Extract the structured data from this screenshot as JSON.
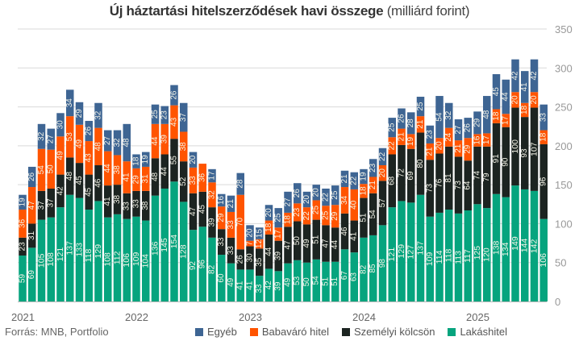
{
  "chart_data": {
    "type": "bar",
    "stacked": true,
    "title": "Új háztartási hitelszerződések havi összege",
    "subtitle": "(milliárd forint)",
    "source": "Forrás: MNB, Portfolio",
    "ylim": [
      0,
      350
    ],
    "yticks": [
      0,
      50,
      100,
      150,
      200,
      250,
      300,
      350
    ],
    "grid": true,
    "legend_position": "bottom",
    "year_labels": [
      "2021",
      "2022",
      "2023",
      "2024",
      "2025"
    ],
    "x": [
      "2021-01",
      "2021-02",
      "2021-03",
      "2021-04",
      "2021-05",
      "2021-06",
      "2021-07",
      "2021-08",
      "2021-09",
      "2021-10",
      "2021-11",
      "2021-12",
      "2022-01",
      "2022-02",
      "2022-03",
      "2022-04",
      "2022-05",
      "2022-06",
      "2022-07",
      "2022-08",
      "2022-09",
      "2022-10",
      "2022-11",
      "2022-12",
      "2023-01",
      "2023-02",
      "2023-03",
      "2023-04",
      "2023-05",
      "2023-06",
      "2023-07",
      "2023-08",
      "2023-09",
      "2023-10",
      "2023-11",
      "2023-12",
      "2024-01",
      "2024-02",
      "2024-03",
      "2024-04",
      "2024-05",
      "2024-06",
      "2024-07",
      "2024-08",
      "2024-09",
      "2024-10",
      "2024-11",
      "2024-12",
      "2025-01",
      "2025-02",
      "2025-03",
      "2025-04",
      "2025-05",
      "2025-06",
      "2025-07",
      "2025-08"
    ],
    "series": [
      {
        "name": "Lakáshitel",
        "color": "#06a47e",
        "values": [
          59,
          69,
          105,
          108,
          121,
          137,
          133,
          118,
          129,
          108,
          112,
          106,
          109,
          104,
          136,
          145,
          154,
          128,
          92,
          96,
          82,
          60,
          49,
          41,
          41,
          33,
          42,
          39,
          49,
          53,
          50,
          54,
          51,
          51,
          67,
          63,
          82,
          85,
          98,
          121,
          129,
          127,
          137,
          109,
          114,
          118,
          113,
          117,
          125,
          120,
          138,
          134,
          149,
          144,
          142,
          106
        ]
      },
      {
        "name": "Személyi kölcsön",
        "color": "#1c2421",
        "values": [
          23,
          31,
          37,
          37,
          42,
          48,
          45,
          45,
          46,
          41,
          38,
          33,
          33,
          38,
          48,
          44,
          55,
          52,
          47,
          45,
          39,
          33,
          33,
          26,
          30,
          35,
          44,
          39,
          47,
          50,
          49,
          51,
          47,
          44,
          46,
          41,
          51,
          54,
          57,
          68,
          72,
          69,
          80,
          73,
          76,
          81,
          73,
          64,
          74,
          79,
          91,
          90,
          100,
          93,
          107,
          96
        ]
      },
      {
        "name": "Babaváró hitel",
        "color": "#ff5400",
        "values": [
          36,
          47,
          54,
          50,
          49,
          53,
          49,
          43,
          48,
          44,
          38,
          41,
          29,
          31,
          44,
          39,
          43,
          38,
          33,
          36,
          32,
          29,
          33,
          70,
          7,
          12,
          18,
          17,
          18,
          23,
          22,
          25,
          25,
          29,
          34,
          40,
          18,
          21,
          20,
          22,
          21,
          19,
          21,
          21,
          20,
          24,
          21,
          29,
          16,
          17,
          18,
          17,
          20,
          18,
          20,
          18
        ]
      },
      {
        "name": "Egyéb",
        "color": "#3e6593",
        "values": [
          19,
          26,
          32,
          27,
          30,
          34,
          29,
          26,
          32,
          27,
          32,
          48,
          18,
          19,
          25,
          23,
          26,
          37,
          20,
          0,
          17,
          16,
          21,
          28,
          20,
          15,
          20,
          25,
          27,
          26,
          20,
          20,
          22,
          25,
          21,
          22,
          19,
          23,
          22,
          25,
          26,
          28,
          25,
          23,
          54,
          32,
          27,
          26,
          29,
          48,
          45,
          44,
          42,
          41,
          42,
          33
        ]
      }
    ],
    "legend": [
      "Egyéb",
      "Babaváró hitel",
      "Személyi kölcsön",
      "Lakáshitel"
    ]
  }
}
